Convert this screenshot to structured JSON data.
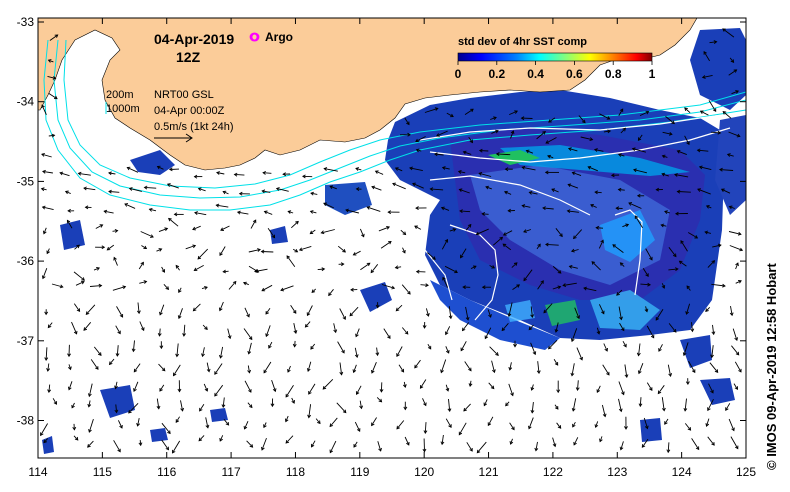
{
  "map": {
    "date": "04-Apr-2019",
    "time": "12Z",
    "argo_label": "Argo",
    "contour_labels": [
      "200m",
      "1000m"
    ],
    "product": "NRT00 GSL",
    "product_time": "04-Apr 00:00Z",
    "vector_scale": "0.5m/s (1kt 24h)",
    "colorbar": {
      "title": "std dev of 4hr SST comp",
      "ticks": [
        "0",
        "0.2",
        "0.4",
        "0.6",
        "0.8",
        "1"
      ],
      "colors": [
        "#00008f",
        "#0000ff",
        "#0080ff",
        "#00ffff",
        "#80ff80",
        "#ffff00",
        "#ff8000",
        "#ff0000",
        "#800000"
      ]
    },
    "x_ticks": [
      "114",
      "115",
      "116",
      "117",
      "118",
      "119",
      "120",
      "121",
      "122",
      "123",
      "124",
      "125"
    ],
    "y_ticks": [
      "-33",
      "-34",
      "-35",
      "-36",
      "-37",
      "-38"
    ],
    "credit": "© IMOS 09-Apr-2019 12:58 Hobart",
    "colors": {
      "land": "#fbcc99",
      "bathymetry": "#00e0e8",
      "argo": "#ff00ff"
    }
  }
}
